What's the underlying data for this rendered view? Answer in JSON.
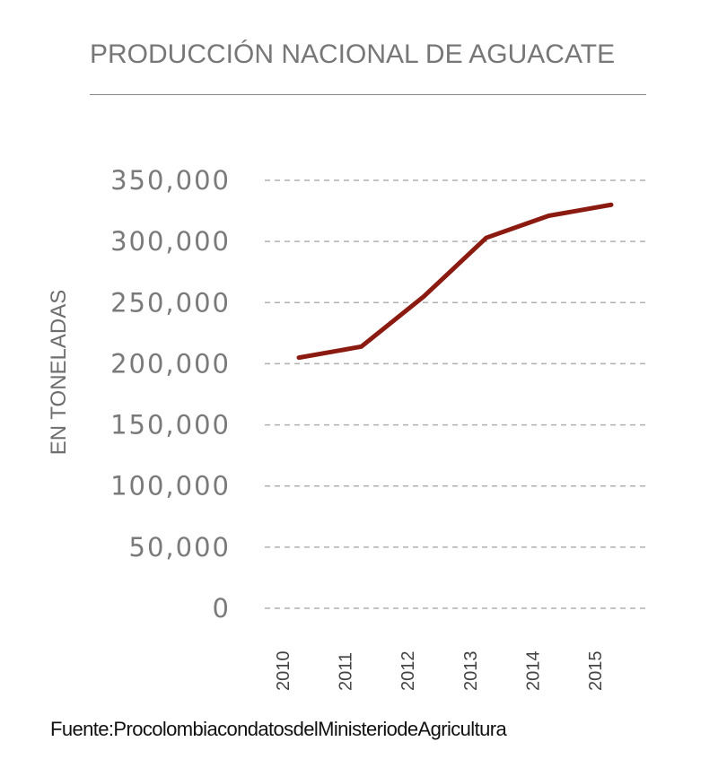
{
  "chart_data": {
    "type": "line",
    "title": "PRODUCCIÓN NACIONAL DE AGUACATE",
    "ylabel": "EN TONELADAS",
    "xlabel": "",
    "categories": [
      "2010",
      "2011",
      "2012",
      "2013",
      "2014",
      "2015"
    ],
    "series": [
      {
        "name": "Producción",
        "values": [
          205000,
          214000,
          255000,
          303000,
          321000,
          330000
        ]
      }
    ],
    "y_ticks": [
      0,
      50000,
      100000,
      150000,
      200000,
      250000,
      300000,
      350000
    ],
    "y_tick_labels": [
      "0",
      "50,000",
      "100,000",
      "150,000",
      "200,000",
      "250,000",
      "300,000",
      "350,000"
    ],
    "ylim": [
      0,
      350000
    ],
    "grid": true,
    "line_color": "#8b1a10",
    "grid_color": "#b0b0b0"
  },
  "source": "Fuente:ProcolombiacondatosdelMinisteriodeAgricultura"
}
